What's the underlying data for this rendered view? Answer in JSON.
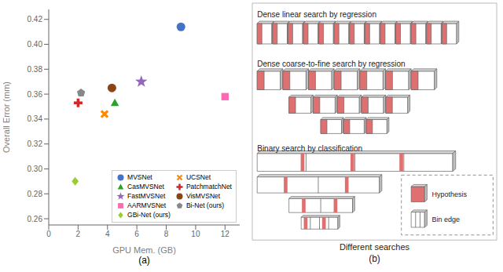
{
  "chart_data": [
    {
      "type": "scatter",
      "xlabel": "GPU Mem. (GB)",
      "ylabel": "Overall Error (mm)",
      "xlim": [
        0,
        13
      ],
      "ylim": [
        0.255,
        0.428
      ],
      "xticks": [
        0,
        2,
        4,
        6,
        8,
        10,
        12
      ],
      "yticks": [
        0.26,
        0.28,
        {
          "value": 0.3,
          "label": "0.30"
        },
        0.32,
        0.34,
        0.36,
        0.38,
        {
          "value": 0.4,
          "label": "0.40"
        },
        0.42
      ],
      "grid": false,
      "legend": "lower right",
      "annotations": [
        "(a)"
      ],
      "series": [
        {
          "name": "MVSNet",
          "color": "#4472C4",
          "marker": "circle",
          "x": [
            9.0
          ],
          "values": [
            0.414
          ]
        },
        {
          "name": "UCSNet",
          "color": "#FF8C00",
          "marker": "x",
          "x": [
            3.8
          ],
          "values": [
            0.344
          ]
        },
        {
          "name": "CasMVSNet",
          "color": "#2CA02C",
          "marker": "triangle",
          "x": [
            4.5
          ],
          "values": [
            0.353
          ]
        },
        {
          "name": "PatchmatchNet",
          "color": "#D62728",
          "marker": "plus",
          "x": [
            2.0
          ],
          "values": [
            0.353
          ]
        },
        {
          "name": "FastMVSNet",
          "color": "#9467BD",
          "marker": "star",
          "x": [
            6.3
          ],
          "values": [
            0.37
          ]
        },
        {
          "name": "VisMVSNet",
          "color": "#8B4513",
          "marker": "circle",
          "x": [
            4.3
          ],
          "values": [
            0.365
          ]
        },
        {
          "name": "AARMVSNet",
          "color": "#FF69B4",
          "marker": "square",
          "x": [
            12.0
          ],
          "values": [
            0.358
          ]
        },
        {
          "name": "Bi-Net (ours)",
          "color": "#888888",
          "marker": "pentagon",
          "x": [
            2.2
          ],
          "values": [
            0.361
          ]
        },
        {
          "name": "GBi-Net (ours)",
          "color": "#9ACD32",
          "marker": "diamond",
          "x": [
            1.8
          ],
          "values": [
            0.29
          ]
        }
      ]
    },
    {
      "type": "diagram",
      "xlabel": "Different searches",
      "color": "#E07070",
      "annotations": [
        "Dense linear search by regression",
        "Dense coarse-to-fine search by regression",
        "Binary search by classification",
        "Hypothesis",
        "Bin edge",
        "(b)"
      ]
    }
  ]
}
